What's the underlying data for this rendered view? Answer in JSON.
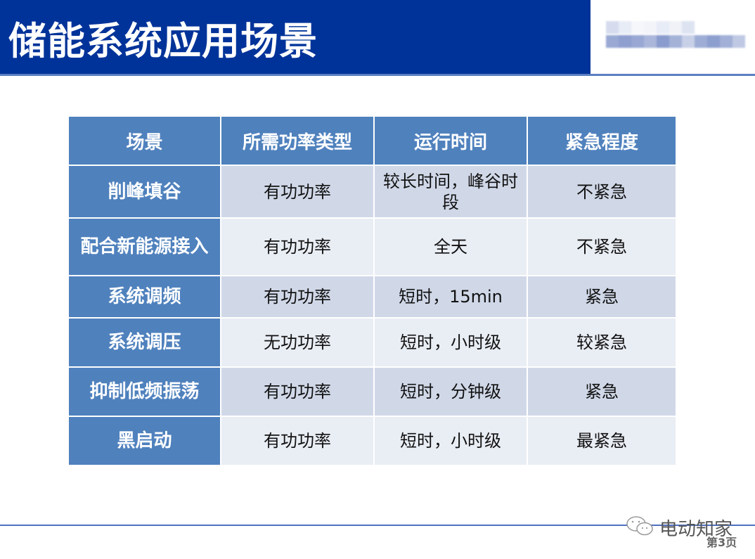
{
  "header": {
    "title": "储能系统应用场景",
    "bar_color": "#003399"
  },
  "table": {
    "headers": [
      "场景",
      "所需功率类型",
      "运行时间",
      "紧急程度"
    ],
    "rows": [
      [
        "削峰填谷",
        "有功功率",
        "较长时间，峰谷时段",
        "不紧急"
      ],
      [
        "配合新能源接入",
        "有功功率",
        "全天",
        "不紧急"
      ],
      [
        "系统调频",
        "有功功率",
        "短时，15min",
        "紧急"
      ],
      [
        "系统调压",
        "无功功率",
        "短时，小时级",
        "较紧急"
      ],
      [
        "抑制低频振荡",
        "有功功率",
        "短时，分钟级",
        "紧急"
      ],
      [
        "黑启动",
        "有功功率",
        "短时，小时级",
        "最紧急"
      ]
    ],
    "header_color": "#4f81bd"
  },
  "footer": {
    "brand": "电动知家",
    "brand_icon": "wechat-icon",
    "page": "第3页"
  }
}
